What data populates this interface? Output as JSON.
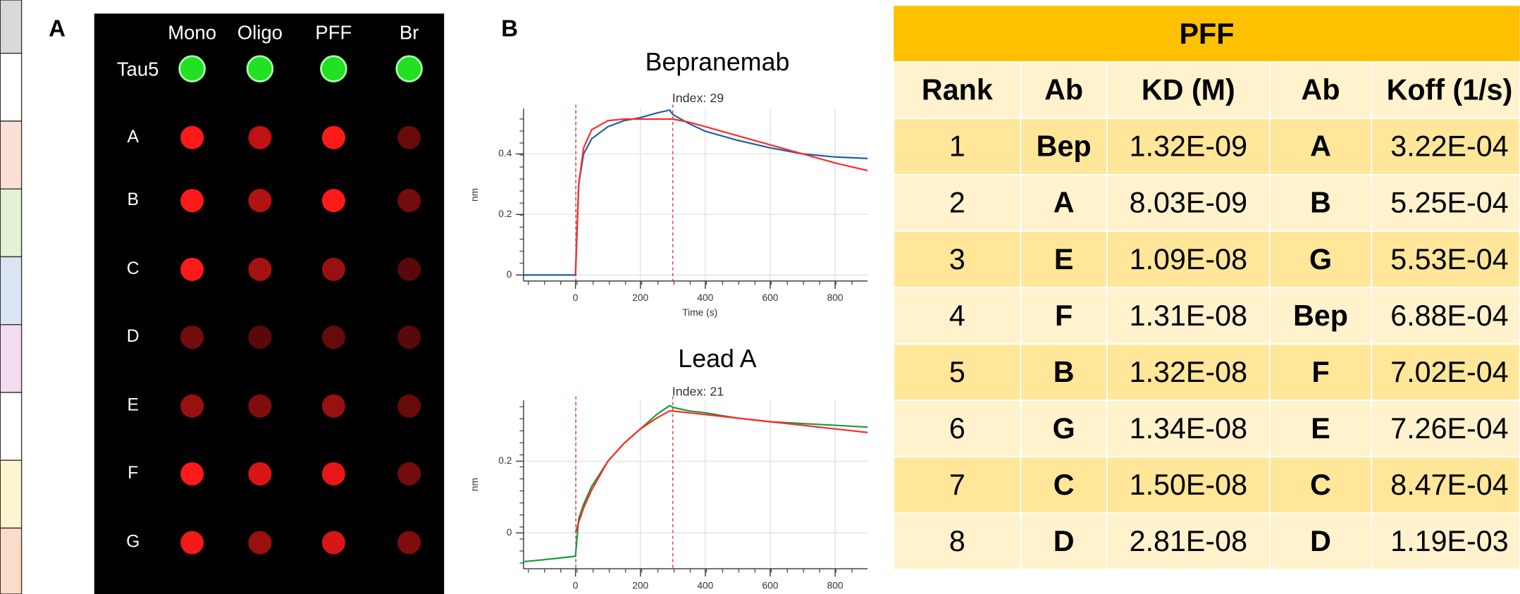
{
  "panel_a": {
    "label": "A",
    "columns": [
      "Mono",
      "Oligo",
      "PFF",
      "Br"
    ],
    "control": "Tau5",
    "rows": [
      "A",
      "B",
      "C",
      "D",
      "E",
      "F",
      "G"
    ]
  },
  "panel_b": {
    "label": "B"
  },
  "chart_data": [
    {
      "type": "line",
      "title": "Bepranemab",
      "annotation": "Index: 29",
      "x_label": "Time (s)",
      "y_label": "nm",
      "x": [
        -160,
        -100,
        -50,
        0,
        10,
        25,
        50,
        100,
        150,
        200,
        250,
        290,
        300,
        350,
        400,
        500,
        600,
        700,
        800,
        900
      ],
      "xlim": [
        -160,
        900
      ],
      "xticks": [
        0,
        200,
        400,
        600,
        800
      ],
      "ylim": [
        -0.02,
        0.55
      ],
      "yticks": [
        0,
        0.2,
        0.4
      ],
      "grid": true,
      "series": [
        {
          "color": "#1f5fa8",
          "values": [
            0,
            0,
            0,
            0,
            0.3,
            0.4,
            0.45,
            0.49,
            0.51,
            0.52,
            0.535,
            0.545,
            0.53,
            0.5,
            0.475,
            0.445,
            0.42,
            0.4,
            0.39,
            0.385
          ]
        },
        {
          "color": "#ff2a2a",
          "values": [
            null,
            null,
            null,
            0,
            0.3,
            0.42,
            0.48,
            0.51,
            0.515,
            0.515,
            0.515,
            0.515,
            0.515,
            0.505,
            0.49,
            0.46,
            0.43,
            0.4,
            0.37,
            0.345
          ]
        }
      ]
    },
    {
      "type": "line",
      "title": "Lead A",
      "annotation": "Index: 21",
      "y_label": "nm",
      "x": [
        -160,
        -100,
        -50,
        0,
        10,
        25,
        50,
        100,
        150,
        200,
        250,
        290,
        300,
        350,
        400,
        500,
        600,
        700,
        800,
        900
      ],
      "xlim": [
        -160,
        900
      ],
      "xticks": [
        0,
        200,
        400,
        600,
        800
      ],
      "ylim": [
        -0.1,
        0.37
      ],
      "yticks": [
        0,
        0.2
      ],
      "grid": true,
      "series": [
        {
          "color": "#1a9a3a",
          "values": [
            -0.08,
            -0.075,
            -0.07,
            -0.065,
            0.04,
            0.08,
            0.13,
            0.2,
            0.25,
            0.29,
            0.33,
            0.355,
            0.35,
            0.34,
            0.335,
            0.32,
            0.31,
            0.305,
            0.3,
            0.295
          ]
        },
        {
          "color": "#ff2a2a",
          "values": [
            null,
            null,
            null,
            0,
            0.03,
            0.07,
            0.12,
            0.2,
            0.25,
            0.29,
            0.32,
            0.34,
            0.34,
            0.335,
            0.33,
            0.32,
            0.31,
            0.3,
            0.29,
            0.28
          ]
        }
      ]
    }
  ],
  "table": {
    "title": "PFF",
    "columns": [
      "Rank",
      "Ab",
      "KD (M)",
      "Ab",
      "Koff (1/s)"
    ],
    "rows": [
      [
        "1",
        "Bep",
        "1.32E-09",
        "A",
        "3.22E-04"
      ],
      [
        "2",
        "A",
        "8.03E-09",
        "B",
        "5.25E-04"
      ],
      [
        "3",
        "E",
        "1.09E-08",
        "G",
        "5.53E-04"
      ],
      [
        "4",
        "F",
        "1.31E-08",
        "Bep",
        "6.88E-04"
      ],
      [
        "5",
        "B",
        "1.32E-08",
        "F",
        "7.02E-04"
      ],
      [
        "6",
        "G",
        "1.34E-08",
        "E",
        "7.26E-04"
      ],
      [
        "7",
        "C",
        "1.50E-08",
        "C",
        "8.47E-04"
      ],
      [
        "8",
        "D",
        "2.81E-08",
        "D",
        "1.19E-03"
      ]
    ]
  }
}
